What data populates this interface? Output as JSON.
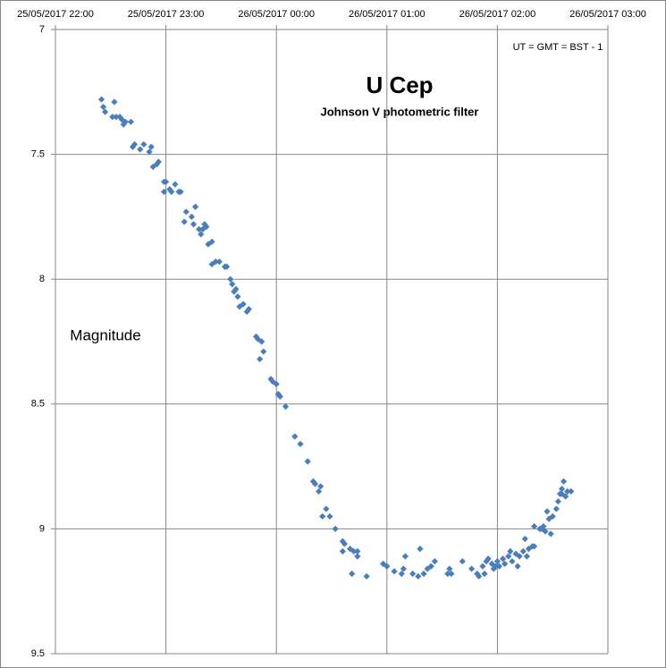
{
  "chart_data": {
    "type": "scatter",
    "title": "U Cep",
    "subtitle": "Johnson V photometric filter",
    "annotation": "UT = GMT = BST - 1",
    "y_label": "Magnitude",
    "y_inverted": true,
    "grid": true,
    "xlim": [
      "25/05/2017 22:00",
      "26/05/2017 03:00"
    ],
    "xticks": [
      "25/05/2017 22:00",
      "25/05/2017 23:00",
      "26/05/2017 00:00",
      "26/05/2017 01:00",
      "26/05/2017 02:00",
      "26/05/2017 03:00"
    ],
    "ylim": [
      7,
      9.5
    ],
    "yticks": [
      7,
      7.5,
      8,
      8.5,
      9,
      9.5
    ],
    "series": [
      {
        "color": "#4a7ebb",
        "x": [
          "25/05/2017 22:25",
          "25/05/2017 22:26",
          "25/05/2017 22:27",
          "25/05/2017 22:32",
          "25/05/2017 22:31",
          "25/05/2017 22:33",
          "25/05/2017 22:35",
          "25/05/2017 22:36",
          "25/05/2017 22:37",
          "25/05/2017 22:38",
          "25/05/2017 22:41",
          "25/05/2017 22:42",
          "25/05/2017 22:43",
          "25/05/2017 22:46",
          "25/05/2017 22:48",
          "25/05/2017 22:51",
          "25/05/2017 22:52",
          "25/05/2017 22:53",
          "25/05/2017 22:55",
          "25/05/2017 22:56",
          "25/05/2017 22:59",
          "25/05/2017 22:59",
          "25/05/2017 23:00",
          "25/05/2017 23:02",
          "25/05/2017 23:03",
          "25/05/2017 23:05",
          "25/05/2017 23:07",
          "25/05/2017 23:08",
          "25/05/2017 23:10",
          "25/05/2017 23:11",
          "25/05/2017 23:14",
          "25/05/2017 23:15",
          "25/05/2017 23:16",
          "25/05/2017 23:18",
          "25/05/2017 23:19",
          "25/05/2017 23:20",
          "25/05/2017 23:21",
          "25/05/2017 23:22",
          "25/05/2017 23:23",
          "25/05/2017 23:25",
          "25/05/2017 23:25",
          "25/05/2017 23:27",
          "25/05/2017 23:29",
          "25/05/2017 23:32",
          "25/05/2017 23:33",
          "25/05/2017 23:35",
          "25/05/2017 23:36",
          "25/05/2017 23:37",
          "25/05/2017 23:38",
          "25/05/2017 23:39",
          "25/05/2017 23:40",
          "25/05/2017 23:42",
          "25/05/2017 23:44",
          "25/05/2017 23:45",
          "25/05/2017 23:49",
          "25/05/2017 23:50",
          "25/05/2017 23:52",
          "25/05/2017 23:51",
          "25/05/2017 23:53",
          "25/05/2017 23:57",
          "25/05/2017 23:58",
          "26/05/2017 00:00",
          "26/05/2017 00:01",
          "26/05/2017 00:02",
          "26/05/2017 00:05",
          "26/05/2017 00:10",
          "26/05/2017 00:13",
          "26/05/2017 00:17",
          "26/05/2017 00:20",
          "26/05/2017 00:21",
          "26/05/2017 00:23",
          "26/05/2017 00:24",
          "26/05/2017 00:25",
          "26/05/2017 00:27",
          "26/05/2017 00:29",
          "26/05/2017 00:32",
          "26/05/2017 00:36",
          "26/05/2017 00:36",
          "26/05/2017 00:37",
          "26/05/2017 00:40",
          "26/05/2017 00:41",
          "26/05/2017 00:42",
          "26/05/2017 00:44",
          "26/05/2017 00:44",
          "26/05/2017 00:49",
          "26/05/2017 00:58",
          "26/05/2017 01:00",
          "26/05/2017 01:04",
          "26/05/2017 01:08",
          "26/05/2017 01:09",
          "26/05/2017 01:10",
          "26/05/2017 01:14",
          "26/05/2017 01:17",
          "26/05/2017 01:18",
          "26/05/2017 01:20",
          "26/05/2017 01:22",
          "26/05/2017 01:24",
          "26/05/2017 01:26",
          "26/05/2017 01:33",
          "26/05/2017 01:34",
          "26/05/2017 01:35",
          "26/05/2017 01:41",
          "26/05/2017 01:46",
          "26/05/2017 01:49",
          "26/05/2017 01:50",
          "26/05/2017 01:52",
          "26/05/2017 01:53",
          "26/05/2017 01:54",
          "26/05/2017 01:55",
          "26/05/2017 01:57",
          "26/05/2017 01:58",
          "26/05/2017 01:59",
          "26/05/2017 02:00",
          "26/05/2017 02:01",
          "26/05/2017 02:03",
          "26/05/2017 02:04",
          "26/05/2017 02:06",
          "26/05/2017 02:07",
          "26/05/2017 02:08",
          "26/05/2017 02:10",
          "26/05/2017 02:11",
          "26/05/2017 02:12",
          "26/05/2017 02:14",
          "26/05/2017 02:15",
          "26/05/2017 02:16",
          "26/05/2017 02:17",
          "26/05/2017 02:19",
          "26/05/2017 02:20",
          "26/05/2017 02:20",
          "26/05/2017 02:23",
          "26/05/2017 02:24",
          "26/05/2017 02:25",
          "26/05/2017 02:26",
          "26/05/2017 02:27",
          "26/05/2017 02:28",
          "26/05/2017 02:29",
          "26/05/2017 02:30",
          "26/05/2017 02:32",
          "26/05/2017 02:33",
          "26/05/2017 02:34",
          "26/05/2017 02:35",
          "26/05/2017 02:36",
          "26/05/2017 02:37",
          "26/05/2017 02:38",
          "26/05/2017 02:40",
          "26/05/2017 02:35"
        ],
        "values": [
          7.28,
          7.31,
          7.33,
          7.29,
          7.35,
          7.35,
          7.35,
          7.36,
          7.38,
          7.37,
          7.37,
          7.47,
          7.46,
          7.48,
          7.46,
          7.49,
          7.47,
          7.55,
          7.54,
          7.53,
          7.61,
          7.65,
          7.61,
          7.64,
          7.65,
          7.62,
          7.65,
          7.65,
          7.77,
          7.73,
          7.75,
          7.78,
          7.71,
          7.8,
          7.82,
          7.8,
          7.78,
          7.79,
          7.86,
          7.85,
          7.94,
          7.93,
          7.93,
          7.95,
          7.95,
          8.0,
          8.02,
          8.05,
          8.04,
          8.07,
          8.11,
          8.1,
          8.13,
          8.12,
          8.23,
          8.24,
          8.25,
          8.32,
          8.29,
          8.4,
          8.41,
          8.42,
          8.46,
          8.47,
          8.51,
          8.63,
          8.66,
          8.73,
          8.81,
          8.82,
          8.85,
          8.83,
          8.95,
          8.92,
          8.95,
          9.0,
          9.09,
          9.05,
          9.06,
          9.08,
          9.18,
          9.09,
          9.11,
          9.09,
          9.19,
          9.14,
          9.15,
          9.17,
          9.18,
          9.16,
          9.11,
          9.18,
          9.19,
          9.08,
          9.18,
          9.16,
          9.15,
          9.13,
          9.18,
          9.16,
          9.18,
          9.13,
          9.16,
          9.18,
          9.19,
          9.15,
          9.18,
          9.13,
          9.12,
          9.14,
          9.16,
          9.15,
          9.13,
          9.15,
          9.12,
          9.14,
          9.11,
          9.09,
          9.13,
          9.1,
          9.15,
          9.11,
          9.09,
          9.04,
          9.11,
          9.08,
          9.07,
          9.07,
          8.99,
          9.0,
          9.0,
          8.99,
          9.01,
          8.93,
          8.96,
          9.02,
          8.95,
          8.92,
          8.89,
          8.86,
          8.84,
          8.81,
          8.87,
          8.85,
          8.85,
          8.86
        ]
      }
    ]
  }
}
